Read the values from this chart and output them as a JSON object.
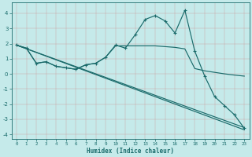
{
  "xlabel": "Humidex (Indice chaleur)",
  "background_color": "#c5eaea",
  "grid_color_minor": "#d4aaaa",
  "grid_color_major": "#ccaaaa",
  "line_color": "#1a6b6b",
  "xlim": [
    -0.5,
    23.5
  ],
  "ylim": [
    -4.3,
    4.7
  ],
  "yticks": [
    -4,
    -3,
    -2,
    -1,
    0,
    1,
    2,
    3,
    4
  ],
  "xticks": [
    0,
    1,
    2,
    3,
    4,
    5,
    6,
    7,
    8,
    9,
    10,
    11,
    12,
    13,
    14,
    15,
    16,
    17,
    18,
    19,
    20,
    21,
    22,
    23
  ],
  "line1_x": [
    0,
    1,
    2,
    3,
    4,
    5,
    6,
    7,
    8,
    9,
    10,
    11,
    12,
    13,
    14,
    15,
    16,
    17,
    18,
    19,
    20,
    21,
    22,
    23
  ],
  "line1_y": [
    1.9,
    1.7,
    0.7,
    0.8,
    0.5,
    0.4,
    0.3,
    0.6,
    0.7,
    1.1,
    1.9,
    1.7,
    2.6,
    3.6,
    3.85,
    3.5,
    2.7,
    4.2,
    1.5,
    -0.15,
    -1.5,
    -2.1,
    -2.7,
    -3.6
  ],
  "line2_x": [
    0,
    1,
    2,
    3,
    4,
    5,
    6,
    7,
    8,
    9,
    10,
    11,
    12,
    13,
    14,
    15,
    16,
    17,
    18,
    19,
    20,
    21,
    22,
    23
  ],
  "line2_y": [
    1.9,
    1.7,
    0.7,
    0.8,
    0.5,
    0.4,
    0.3,
    0.6,
    0.7,
    1.1,
    1.85,
    1.85,
    1.85,
    1.85,
    1.85,
    1.8,
    1.75,
    1.65,
    0.35,
    0.2,
    0.1,
    0.0,
    -0.08,
    -0.15
  ],
  "line3_x": [
    0,
    23
  ],
  "line3_y": [
    1.9,
    -3.55
  ],
  "line4_x": [
    0,
    23
  ],
  "line4_y": [
    1.9,
    -3.7
  ]
}
